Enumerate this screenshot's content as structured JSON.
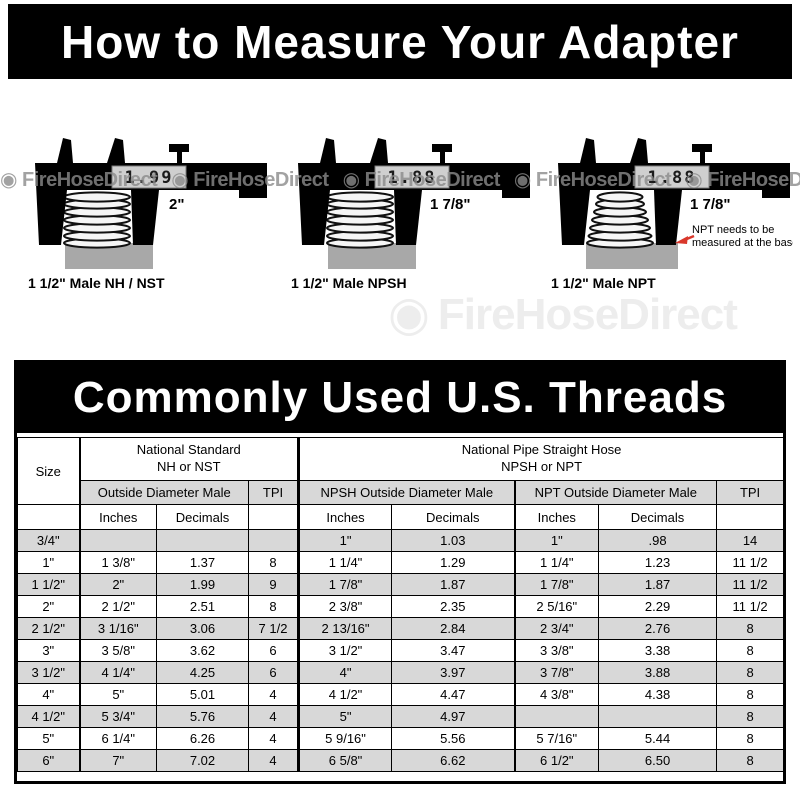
{
  "page": {
    "header_title": "How to Measure Your Adapter",
    "table_banner": "Commonly Used U.S. Threads"
  },
  "watermark": {
    "text": "FireHoseDirect",
    "icon": "flame-icon"
  },
  "diagrams": [
    {
      "reading": "1.99",
      "beam_label": "2\"",
      "caption": "1 1/2\" Male NH / NST"
    },
    {
      "reading": "1.88",
      "beam_label": "1 7/8\"",
      "caption": "1 1/2\" Male NPSH"
    },
    {
      "reading": "1.88",
      "beam_label": "1 7/8\"",
      "caption": "1 1/2\" Male NPT",
      "note_line1": "NPT needs to be",
      "note_line2": "measured at the base"
    }
  ],
  "colors": {
    "banner_bg": "#000000",
    "row_alt": "#d8d8d8",
    "arrow_red": "#d9372b",
    "watermark_gray": "#8b8b8b"
  },
  "table": {
    "header": {
      "size": "Size",
      "group1_line1": "National Standard",
      "group1_line2": "NH or NST",
      "group2_line1": "National Pipe Straight Hose",
      "group2_line2": "NPSH or NPT",
      "sub_nh": "Outside Diameter Male",
      "sub_npsh": "NPSH Outside Diameter Male",
      "sub_npt": "NPT Outside Diameter Male",
      "tpi": "TPI",
      "inches": "Inches",
      "decimals": "Decimals"
    },
    "rows": [
      [
        "3/4\"",
        "",
        "",
        "",
        "1\"",
        "1.03",
        "1\"",
        ".98",
        "14"
      ],
      [
        "1\"",
        "1 3/8\"",
        "1.37",
        "8",
        "1 1/4\"",
        "1.29",
        "1 1/4\"",
        "1.23",
        "11 1/2"
      ],
      [
        "1 1/2\"",
        "2\"",
        "1.99",
        "9",
        "1 7/8\"",
        "1.87",
        "1 7/8\"",
        "1.87",
        "11 1/2"
      ],
      [
        "2\"",
        "2 1/2\"",
        "2.51",
        "8",
        "2 3/8\"",
        "2.35",
        "2 5/16\"",
        "2.29",
        "11 1/2"
      ],
      [
        "2 1/2\"",
        "3 1/16\"",
        "3.06",
        "7 1/2",
        "2 13/16\"",
        "2.84",
        "2 3/4\"",
        "2.76",
        "8"
      ],
      [
        "3\"",
        "3 5/8\"",
        "3.62",
        "6",
        "3 1/2\"",
        "3.47",
        "3 3/8\"",
        "3.38",
        "8"
      ],
      [
        "3 1/2\"",
        "4 1/4\"",
        "4.25",
        "6",
        "4\"",
        "3.97",
        "3 7/8\"",
        "3.88",
        "8"
      ],
      [
        "4\"",
        "5\"",
        "5.01",
        "4",
        "4 1/2\"",
        "4.47",
        "4 3/8\"",
        "4.38",
        "8"
      ],
      [
        "4 1/2\"",
        "5 3/4\"",
        "5.76",
        "4",
        "5\"",
        "4.97",
        "",
        "",
        "8"
      ],
      [
        "5\"",
        "6 1/4\"",
        "6.26",
        "4",
        "5 9/16\"",
        "5.56",
        "5 7/16\"",
        "5.44",
        "8"
      ],
      [
        "6\"",
        "7\"",
        "7.02",
        "4",
        "6 5/8\"",
        "6.62",
        "6 1/2\"",
        "6.50",
        "8"
      ]
    ]
  }
}
